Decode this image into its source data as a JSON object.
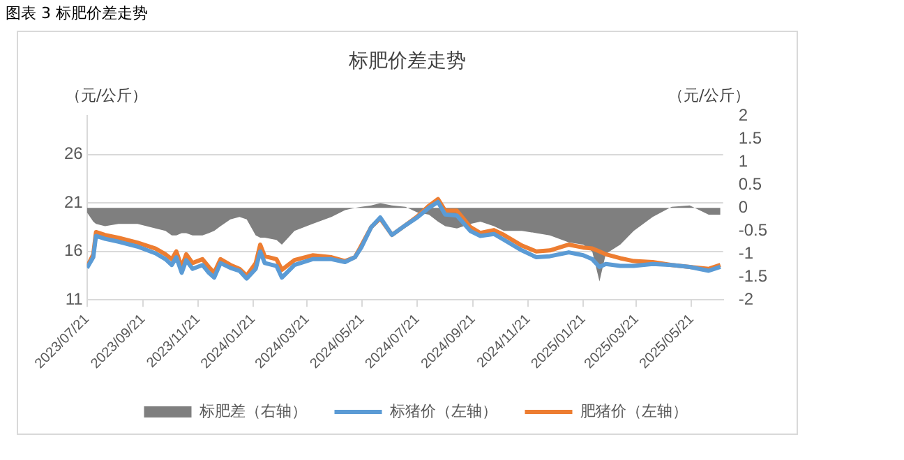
{
  "chart_data": {
    "type": "line",
    "title": "标肥价差走势",
    "ylabel": "（元/公斤）",
    "y2label": "（元/公斤）",
    "annotations": [
      "图表 3 标肥价差走势"
    ],
    "x": [
      "2023-07-21",
      "2023-07-28",
      "2023-07-31",
      "2023-08-10",
      "2023-08-25",
      "2023-09-15",
      "2023-10-05",
      "2023-10-16",
      "2023-10-23",
      "2023-10-28",
      "2023-11-03",
      "2023-11-08",
      "2023-11-15",
      "2023-11-26",
      "2023-12-03",
      "2023-12-09",
      "2023-12-16",
      "2023-12-27",
      "2024-01-06",
      "2024-01-14",
      "2024-01-24",
      "2024-01-29",
      "2024-02-03",
      "2024-02-16",
      "2024-02-22",
      "2024-03-07",
      "2024-03-27",
      "2024-04-17",
      "2024-05-02",
      "2024-05-13",
      "2024-05-20",
      "2024-05-31",
      "2024-06-10",
      "2024-06-23",
      "2024-07-08",
      "2024-07-21",
      "2024-08-03",
      "2024-08-13",
      "2024-08-21",
      "2024-09-03",
      "2024-09-18",
      "2024-09-29",
      "2024-10-14",
      "2024-10-25",
      "2024-11-14",
      "2024-11-30",
      "2024-12-15",
      "2025-01-05",
      "2025-01-21",
      "2025-01-31",
      "2025-02-08",
      "2025-02-15",
      "2025-03-03",
      "2025-03-18",
      "2025-04-08",
      "2025-04-29",
      "2025-05-19",
      "2025-06-09",
      "2025-06-22"
    ],
    "series": [
      {
        "name": "标肥差（右轴）",
        "type": "area",
        "axis": "y2",
        "color": "#7f7f7f",
        "values": [
          -0.1,
          -0.3,
          -0.35,
          -0.4,
          -0.35,
          -0.35,
          -0.45,
          -0.5,
          -0.6,
          -0.6,
          -0.55,
          -0.55,
          -0.6,
          -0.6,
          -0.55,
          -0.5,
          -0.4,
          -0.25,
          -0.2,
          -0.25,
          -0.6,
          -0.65,
          -0.65,
          -0.7,
          -0.8,
          -0.5,
          -0.35,
          -0.2,
          -0.05,
          0,
          0.02,
          0.05,
          0.1,
          0.05,
          0.02,
          -0.1,
          -0.15,
          -0.3,
          -0.4,
          -0.45,
          -0.35,
          -0.3,
          -0.4,
          -0.5,
          -0.5,
          -0.55,
          -0.6,
          -0.75,
          -0.8,
          -0.95,
          -1.6,
          -1.0,
          -0.8,
          -0.5,
          -0.2,
          0.02,
          0.05,
          -0.15,
          -0.15
        ]
      },
      {
        "name": "标猪价（左轴）",
        "type": "line",
        "color": "#5b9bd5",
        "values": [
          14.3,
          15.4,
          17.6,
          17.3,
          17.0,
          16.5,
          15.8,
          15.2,
          14.6,
          15.4,
          13.8,
          15.1,
          14.2,
          14.6,
          13.8,
          13.3,
          14.8,
          14.3,
          14.0,
          13.2,
          14.2,
          16.0,
          14.8,
          14.5,
          13.3,
          14.6,
          15.2,
          15.2,
          14.9,
          15.4,
          16.4,
          18.5,
          19.5,
          17.7,
          18.7,
          19.5,
          20.5,
          21.1,
          19.8,
          19.7,
          18.1,
          17.6,
          17.8,
          17.2,
          16.1,
          15.4,
          15.5,
          15.9,
          15.6,
          15.2,
          14.4,
          14.7,
          14.5,
          14.5,
          14.7,
          14.6,
          14.4,
          14.0,
          14.4
        ]
      },
      {
        "name": "肥猪价（左轴）",
        "type": "line",
        "color": "#ed7d31",
        "values": [
          14.4,
          15.7,
          18.0,
          17.7,
          17.4,
          16.9,
          16.3,
          15.7,
          15.2,
          16.0,
          14.4,
          15.7,
          14.8,
          15.2,
          14.4,
          13.8,
          15.2,
          14.6,
          14.2,
          13.5,
          14.8,
          16.7,
          15.5,
          15.2,
          14.1,
          15.1,
          15.6,
          15.4,
          15.0,
          15.4,
          16.6,
          18.5,
          19.4,
          17.7,
          18.7,
          19.6,
          20.7,
          21.4,
          20.2,
          20.2,
          18.5,
          17.9,
          18.2,
          17.7,
          16.6,
          16.0,
          16.1,
          16.7,
          16.4,
          16.3,
          16.0,
          15.7,
          15.3,
          15.0,
          14.9,
          14.6,
          14.4,
          14.2,
          14.6
        ]
      }
    ],
    "xlim": [
      "2023-07-21",
      "2025-06-25"
    ],
    "xticks": [
      {
        "value": "2023-07-21",
        "label": "2023/07/21"
      },
      {
        "value": "2023-09-21",
        "label": "2023/09/21"
      },
      {
        "value": "2023-11-21",
        "label": "2023/11/21"
      },
      {
        "value": "2024-01-21",
        "label": "2024/01/21"
      },
      {
        "value": "2024-03-21",
        "label": "2024/03/21"
      },
      {
        "value": "2024-05-21",
        "label": "2024/05/21"
      },
      {
        "value": "2024-07-21",
        "label": "2024/07/21"
      },
      {
        "value": "2024-09-21",
        "label": "2024/09/21"
      },
      {
        "value": "2024-11-21",
        "label": "2024/11/21"
      },
      {
        "value": "2025-01-21",
        "label": "2025/01/21"
      },
      {
        "value": "2025-03-21",
        "label": "2025/03/21"
      },
      {
        "value": "2025-05-21",
        "label": "2025/05/21"
      }
    ],
    "ylim": [
      11,
      30
    ],
    "yticks": [
      11,
      16,
      21,
      26
    ],
    "y2lim": [
      -2,
      2
    ],
    "y2ticks": [
      -2,
      -1.5,
      -1,
      -0.5,
      0,
      0.5,
      1,
      1.5,
      2
    ],
    "grid": "y",
    "legend": "bottom",
    "marker": "none",
    "line_style": "solid"
  }
}
